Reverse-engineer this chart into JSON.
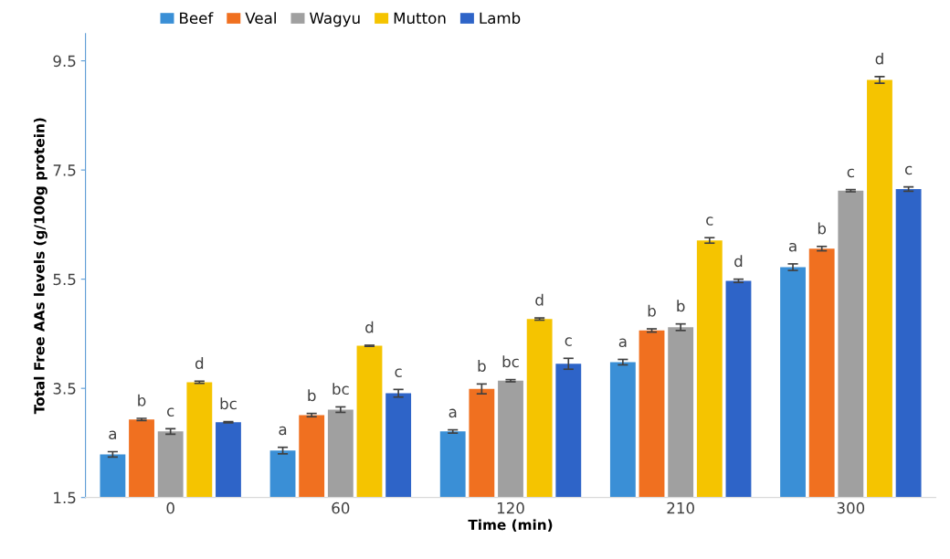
{
  "chart_data": {
    "type": "bar",
    "xlabel": "Time (min)",
    "ylabel": "Total Free AAs levels (g/100g protein)",
    "categories": [
      "0",
      "60",
      "120",
      "210",
      "300"
    ],
    "series": [
      {
        "name": "Beef",
        "color": "#3a8fd6",
        "values": [
          2.29,
          2.36,
          2.71,
          3.98,
          5.72
        ],
        "errors": [
          0.05,
          0.06,
          0.03,
          0.05,
          0.06
        ],
        "value_labels": [
          "a",
          "a",
          "a",
          "a",
          "a"
        ]
      },
      {
        "name": "Veal",
        "color": "#f07020",
        "values": [
          2.93,
          3.01,
          3.49,
          4.56,
          6.06
        ],
        "errors": [
          0.02,
          0.03,
          0.09,
          0.03,
          0.04
        ],
        "value_labels": [
          "b",
          "b",
          "b",
          "b",
          "b"
        ]
      },
      {
        "name": "Wagyu",
        "color": "#a0a0a0",
        "values": [
          2.71,
          3.11,
          3.64,
          4.62,
          7.12
        ],
        "errors": [
          0.05,
          0.05,
          0.02,
          0.06,
          0.02
        ],
        "value_labels": [
          "c",
          "bc",
          "bc",
          "b",
          "c"
        ]
      },
      {
        "name": "Mutton",
        "color": "#f5c400",
        "values": [
          3.61,
          4.28,
          4.77,
          6.21,
          9.15
        ],
        "errors": [
          0.02,
          0.01,
          0.02,
          0.05,
          0.06
        ],
        "value_labels": [
          "d",
          "d",
          "d",
          "c",
          "d"
        ]
      },
      {
        "name": "Lamb",
        "color": "#2e64c8",
        "values": [
          2.88,
          3.41,
          3.95,
          5.47,
          7.15
        ],
        "errors": [
          0.01,
          0.07,
          0.1,
          0.03,
          0.04
        ],
        "value_labels": [
          "bc",
          "c",
          "c",
          "d",
          "c"
        ]
      }
    ],
    "ylim": [
      1.5,
      10
    ],
    "yticks": [
      1.5,
      3.5,
      5.5,
      7.5,
      9.5
    ],
    "grid": false,
    "legend": "top"
  }
}
